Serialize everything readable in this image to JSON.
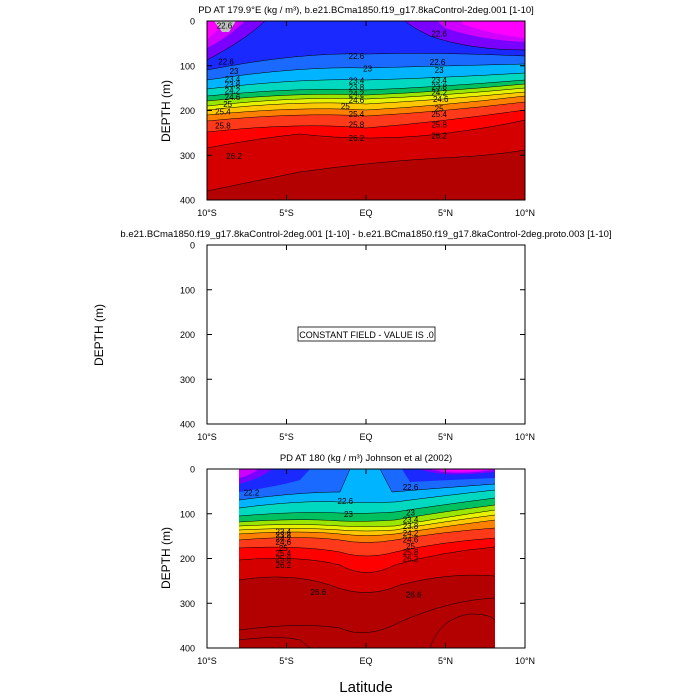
{
  "figure": {
    "xlabel": "Latitude",
    "xticks": [
      "10°S",
      "5°S",
      "EQ",
      "5°N",
      "10°N"
    ]
  },
  "chart_data": [
    {
      "type": "heatmap",
      "title": "PD AT 179.9°E (kg / m³), b.e21.BCma1850.f19_g17.8kaControl-2deg.001 [1-10]",
      "xlabel": "",
      "ylabel": "DEPTH (m)",
      "xlim": [
        -10,
        10
      ],
      "ylim": [
        400,
        0
      ],
      "yticks": [
        0,
        100,
        200,
        300,
        400
      ],
      "grid": false,
      "contour_labels": [
        {
          "lat": -8.9,
          "depth": 10,
          "value": "22.6"
        },
        {
          "lat": 4.6,
          "depth": 28,
          "value": "22.6"
        },
        {
          "lat": -0.6,
          "depth": 78,
          "value": "22.6"
        },
        {
          "lat": -8.8,
          "depth": 90,
          "value": "22.6"
        },
        {
          "lat": 4.5,
          "depth": 92,
          "value": "22.6"
        },
        {
          "lat": -8.3,
          "depth": 112,
          "value": "23"
        },
        {
          "lat": 0.1,
          "depth": 106,
          "value": "23"
        },
        {
          "lat": 4.6,
          "depth": 110,
          "value": "23"
        },
        {
          "lat": -8.4,
          "depth": 130,
          "value": "23.4"
        },
        {
          "lat": -0.6,
          "depth": 133,
          "value": "23.4"
        },
        {
          "lat": 4.6,
          "depth": 132,
          "value": "23.4"
        },
        {
          "lat": -8.4,
          "depth": 142,
          "value": "23.8"
        },
        {
          "lat": -0.6,
          "depth": 147,
          "value": "23.8"
        },
        {
          "lat": 4.6,
          "depth": 146,
          "value": "23.8"
        },
        {
          "lat": -8.4,
          "depth": 155,
          "value": "24.2"
        },
        {
          "lat": -0.6,
          "depth": 162,
          "value": "24.2"
        },
        {
          "lat": 4.6,
          "depth": 160,
          "value": "24.2"
        },
        {
          "lat": -8.4,
          "depth": 170,
          "value": "24.6"
        },
        {
          "lat": -0.6,
          "depth": 176,
          "value": "24.6"
        },
        {
          "lat": 4.7,
          "depth": 174,
          "value": "24.6"
        },
        {
          "lat": -8.7,
          "depth": 186,
          "value": "25"
        },
        {
          "lat": -1.3,
          "depth": 190,
          "value": "25"
        },
        {
          "lat": 4.6,
          "depth": 196,
          "value": "25"
        },
        {
          "lat": -9.0,
          "depth": 202,
          "value": "25.4"
        },
        {
          "lat": -0.6,
          "depth": 208,
          "value": "25.4"
        },
        {
          "lat": 4.6,
          "depth": 208,
          "value": "25.4"
        },
        {
          "lat": -9.0,
          "depth": 233,
          "value": "25.8"
        },
        {
          "lat": -0.6,
          "depth": 231,
          "value": "25.8"
        },
        {
          "lat": 4.6,
          "depth": 231,
          "value": "25.8"
        },
        {
          "lat": -0.6,
          "depth": 262,
          "value": "26.2"
        },
        {
          "lat": 4.6,
          "depth": 256,
          "value": "26.2"
        },
        {
          "lat": -8.3,
          "depth": 302,
          "value": "26.2"
        }
      ]
    },
    {
      "type": "heatmap",
      "title": "b.e21.BCma1850.f19_g17.8kaControl-2deg.001 [1-10] - b.e21.BCma1850.f19_g17.8kaControl-2deg.proto.003 [1-10]",
      "xlabel": "",
      "ylabel": "DEPTH (m)",
      "xlim": [
        -10,
        10
      ],
      "ylim": [
        400,
        0
      ],
      "yticks": [
        0,
        100,
        200,
        300,
        400
      ],
      "grid": false,
      "annotation": "CONSTANT FIELD - VALUE IS .0"
    },
    {
      "type": "heatmap",
      "title": "PD AT 180 (kg / m³) Johnson et al (2002)",
      "xlabel": "Latitude",
      "ylabel": "DEPTH (m)",
      "xlim": [
        -10,
        10
      ],
      "ylim": [
        400,
        0
      ],
      "yticks": [
        0,
        100,
        200,
        300,
        400
      ],
      "grid": false,
      "data_lat_range": [
        -8,
        8
      ],
      "contour_labels": [
        {
          "lat": -7.2,
          "depth": 52,
          "value": "22.2"
        },
        {
          "lat": 2.8,
          "depth": 40,
          "value": "22.6"
        },
        {
          "lat": -1.3,
          "depth": 72,
          "value": "22.6"
        },
        {
          "lat": -1.1,
          "depth": 100,
          "value": "23"
        },
        {
          "lat": 2.8,
          "depth": 97,
          "value": "23"
        },
        {
          "lat": 2.8,
          "depth": 113,
          "value": "23.4"
        },
        {
          "lat": 2.8,
          "depth": 127,
          "value": "23.8"
        },
        {
          "lat": -5.2,
          "depth": 140,
          "value": "23.4"
        },
        {
          "lat": -5.2,
          "depth": 147,
          "value": "23.8"
        },
        {
          "lat": -5.2,
          "depth": 155,
          "value": "24.2"
        },
        {
          "lat": -5.2,
          "depth": 163,
          "value": "24.6"
        },
        {
          "lat": 2.8,
          "depth": 143,
          "value": "24.2"
        },
        {
          "lat": 2.8,
          "depth": 157,
          "value": "24.6"
        },
        {
          "lat": -5.2,
          "depth": 176,
          "value": "25"
        },
        {
          "lat": -5.2,
          "depth": 188,
          "value": "25.4"
        },
        {
          "lat": -5.2,
          "depth": 200,
          "value": "25.8"
        },
        {
          "lat": -5.2,
          "depth": 215,
          "value": "26.2"
        },
        {
          "lat": 2.8,
          "depth": 172,
          "value": "25"
        },
        {
          "lat": 2.8,
          "depth": 186,
          "value": "25.8"
        },
        {
          "lat": 2.8,
          "depth": 200,
          "value": "26.2"
        },
        {
          "lat": -3.0,
          "depth": 275,
          "value": "26.6"
        },
        {
          "lat": 3.0,
          "depth": 280,
          "value": "26.6"
        }
      ]
    }
  ]
}
